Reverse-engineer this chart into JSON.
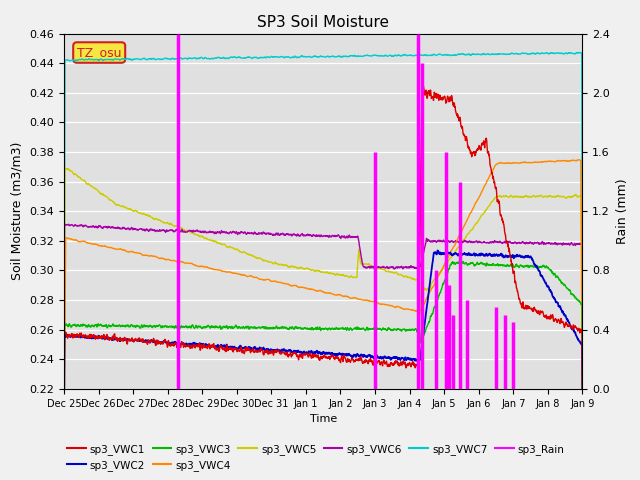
{
  "title": "SP3 Soil Moisture",
  "xlabel": "Time",
  "ylabel_left": "Soil Moisture (m3/m3)",
  "ylabel_right": "Rain (mm)",
  "ylim_left": [
    0.22,
    0.46
  ],
  "ylim_right": [
    0.0,
    2.4
  ],
  "fig_bg_color": "#f0f0f0",
  "plot_bg_color": "#e0e0e0",
  "label_box_color": "#f5e642",
  "label_box_text": "TZ_osu",
  "label_box_border": "#cc2222",
  "series_colors": {
    "sp3_VWC1": "#dd0000",
    "sp3_VWC2": "#0000cc",
    "sp3_VWC3": "#00bb00",
    "sp3_VWC4": "#ff8800",
    "sp3_VWC5": "#cccc00",
    "sp3_VWC6": "#aa00aa",
    "sp3_VWC7": "#00cccc",
    "sp3_Rain": "#ff00ff"
  },
  "x_tick_labels": [
    "Dec 25",
    "Dec 26",
    "Dec 27",
    "Dec 28",
    "Dec 29",
    "Dec 30",
    "Dec 31",
    "Jan 1",
    "Jan 2",
    "Jan 3",
    "Jan 4",
    "Jan 5",
    "Jan 6",
    "Jan 7",
    "Jan 8",
    "Jan 9"
  ]
}
